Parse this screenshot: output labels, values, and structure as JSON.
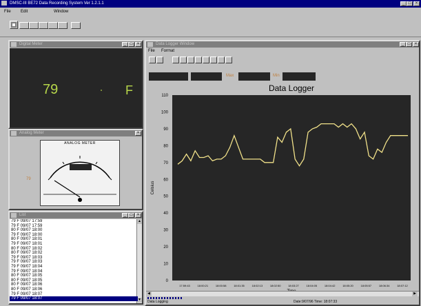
{
  "app": {
    "title": "DMSC-III BE72 Data Recording System Ver 1.2.1.1",
    "menu": [
      {
        "label": "File",
        "under": "F"
      },
      {
        "label": "Edit",
        "under": "E"
      },
      {
        "label": "Window",
        "under": "W"
      }
    ]
  },
  "digital": {
    "title": "Digital Meter",
    "value": "79",
    "unit": "F"
  },
  "analog": {
    "title": "Analog Meter",
    "label": "ANALOG METER",
    "left_value": "79"
  },
  "list": {
    "title": "List",
    "rows": [
      "79 F  09/07 17:59",
      "79 F  09/07 17:59",
      "80 F  09/07 18:00",
      "79 F  09/07 18:00",
      "80 F  09/07 18:01",
      "79 F  09/07 18:01",
      "80 F  09/07 18:02",
      "80 F  09/07 18:02",
      "79 F  09/07 18:03",
      "79 F  09/07 18:03",
      "79 F  09/07 18:04",
      "79 F  09/07 18:04",
      "80 F  09/07 18:05",
      "80 F  09/07 18:05",
      "80 F  09/07 18:06",
      "80 F  09/07 18:06",
      "79 F  09/07 18:07",
      "79 F  09/07 18:07"
    ],
    "selected_row": "79 F  09/07 18:07"
  },
  "logger": {
    "title": "Data Logger Window",
    "menu": [
      {
        "label": "File",
        "under": "F"
      },
      {
        "label": "Format",
        "under": "o"
      }
    ],
    "field_max_label": "Max",
    "field_min_label": "Min",
    "status": "Data Logging",
    "status_right": "Date:9/07/96  Time: 18:07:33"
  },
  "colors": {
    "screen_bg": "#262626",
    "plot_bg": "#262626",
    "line": "#f2e28a",
    "digital_text": "#b6d64a",
    "titlebar_active": "#000080",
    "titlebar_inactive": "#7f7f7f"
  },
  "chart_data": {
    "type": "line",
    "title": "Data Logger",
    "xlabel": "Time",
    "ylabel": "Celsius",
    "ylim": [
      0,
      110
    ],
    "yticks": [
      0,
      10,
      20,
      30,
      40,
      50,
      60,
      70,
      80,
      90,
      100,
      110
    ],
    "xticks": [
      "17:59:43",
      "18:00:21",
      "18:00:58",
      "18:01:35",
      "18:02:13",
      "18:02:50",
      "18:03:27",
      "18:04:05",
      "18:04:42",
      "18:05:20",
      "18:05:57",
      "18:06:34",
      "18:07:12"
    ],
    "grid": false,
    "series": [
      {
        "values": [
          69,
          71,
          75,
          71,
          77,
          73,
          73,
          74,
          71,
          72,
          72,
          74,
          79,
          86,
          79,
          72,
          72,
          72,
          72,
          72,
          70,
          70,
          70,
          85,
          82,
          88,
          90,
          72,
          68,
          72,
          88,
          90,
          91,
          93,
          93,
          93,
          93,
          91,
          93,
          91,
          93,
          90,
          84,
          88,
          74,
          72,
          78,
          76,
          82,
          86,
          86,
          86,
          86,
          86
        ]
      }
    ]
  }
}
